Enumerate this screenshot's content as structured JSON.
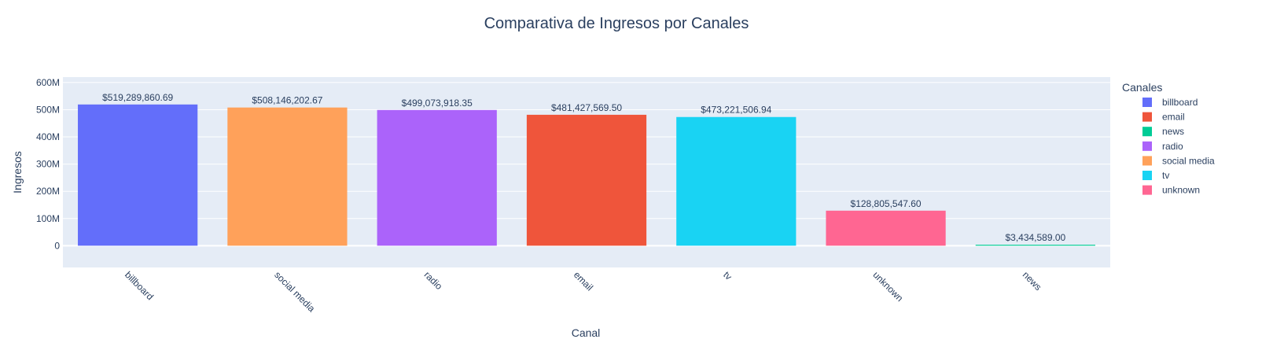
{
  "chart_data": {
    "type": "bar",
    "title": "Comparativa de Ingresos por Canales",
    "xlabel": "Canal",
    "ylabel": "Ingresos",
    "ylim": [
      -80000000,
      620000000
    ],
    "yticks": [
      {
        "value": 0,
        "label": "0"
      },
      {
        "value": 100000000,
        "label": "100M"
      },
      {
        "value": 200000000,
        "label": "200M"
      },
      {
        "value": 300000000,
        "label": "300M"
      },
      {
        "value": 400000000,
        "label": "400M"
      },
      {
        "value": 500000000,
        "label": "500M"
      },
      {
        "value": 600000000,
        "label": "600M"
      }
    ],
    "categories": [
      "billboard",
      "social media",
      "radio",
      "email",
      "tv",
      "unknown",
      "news"
    ],
    "values": [
      519289860.69,
      508146202.67,
      499073918.35,
      481427569.5,
      473221506.94,
      128805547.6,
      3434589.0
    ],
    "labels": [
      "$519,289,860.69",
      "$508,146,202.67",
      "$499,073,918.35",
      "$481,427,569.50",
      "$473,221,506.94",
      "$128,805,547.60",
      "$3,434,589.00"
    ],
    "colors": {
      "billboard": "#636efa",
      "email": "#ef553b",
      "news": "#00cc96",
      "radio": "#ab63fa",
      "social media": "#ffa15a",
      "tv": "#19d3f3",
      "unknown": "#ff6692"
    },
    "legend": {
      "title": "Canales",
      "position": "right",
      "items": [
        "billboard",
        "email",
        "news",
        "radio",
        "social media",
        "tv",
        "unknown"
      ]
    }
  }
}
